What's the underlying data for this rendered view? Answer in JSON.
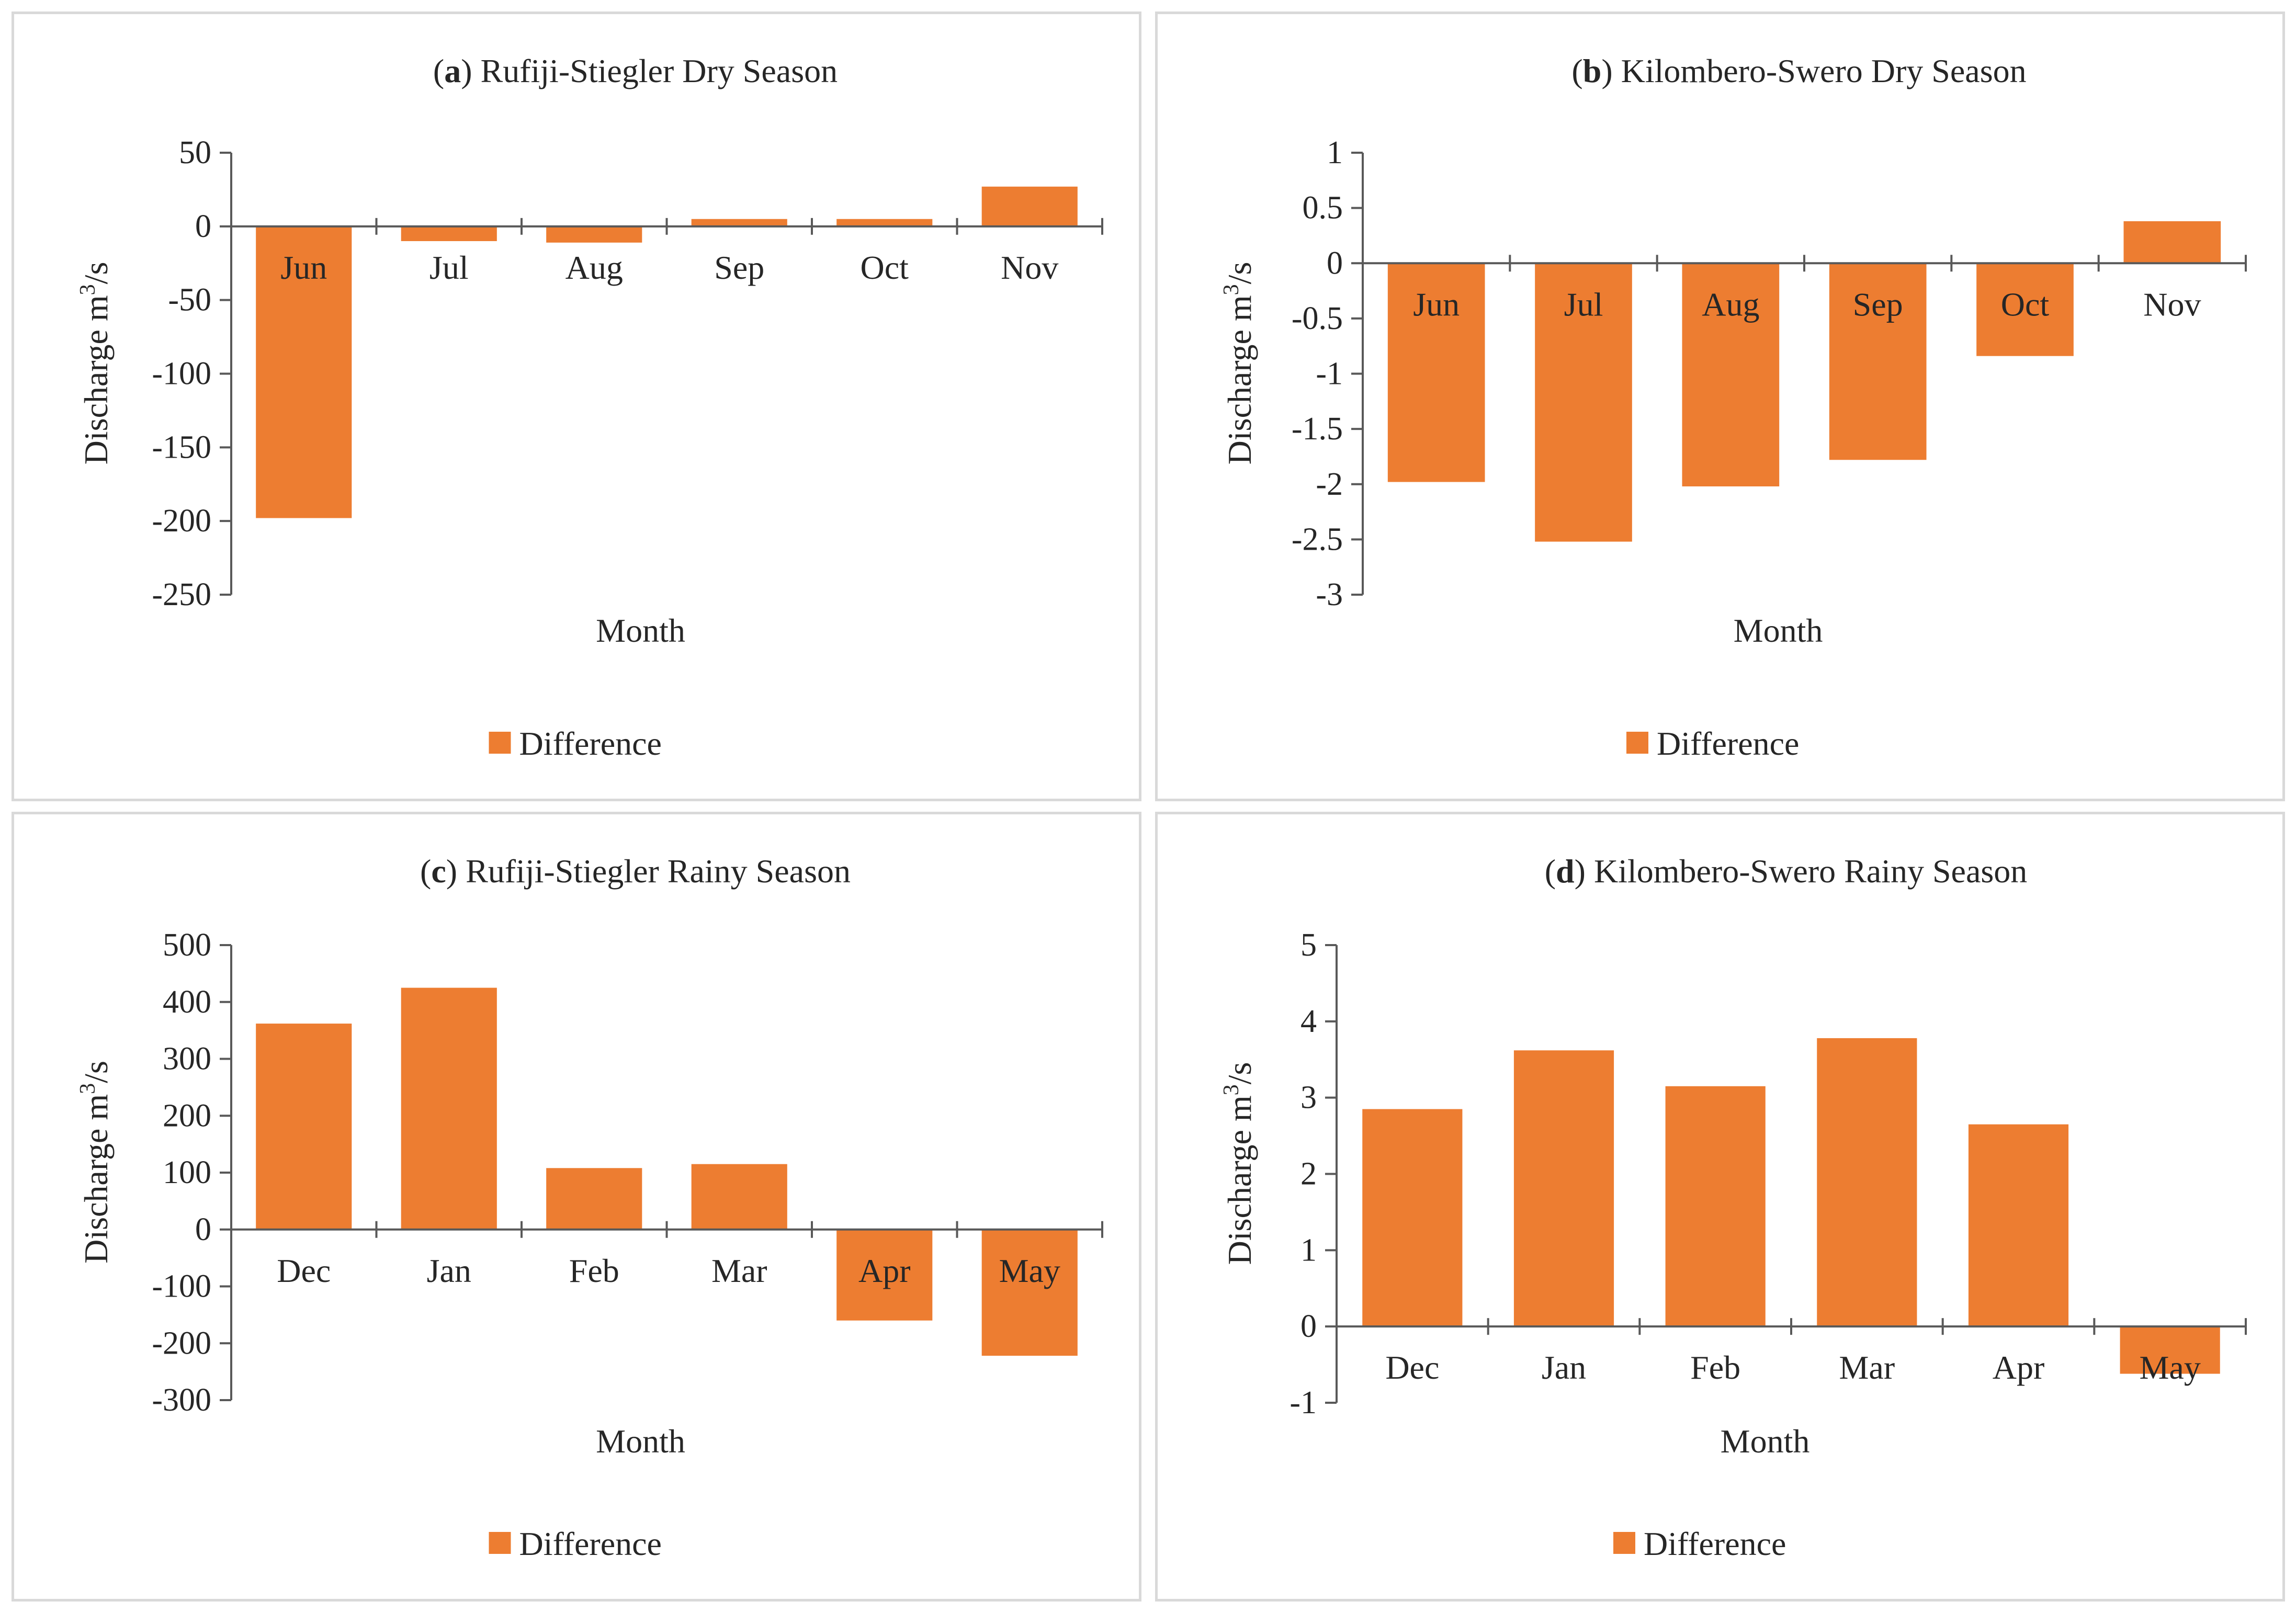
{
  "chart_data": [
    {
      "type": "bar",
      "panel_letter": "a",
      "title": "Rufiji-Stiegler Dry Season",
      "categories": [
        "Jun",
        "Jul",
        "Aug",
        "Sep",
        "Oct",
        "Nov"
      ],
      "series": [
        {
          "name": "Difference",
          "values": [
            -198,
            -10,
            -11,
            5,
            5,
            27
          ]
        }
      ],
      "ylabel": "Discharge m3/s",
      "ylabel_parts": [
        "Discharge m",
        "3",
        "/s"
      ],
      "xlabel": "Month",
      "ylim": [
        -250,
        50
      ],
      "yticks": [
        50,
        0,
        -50,
        -100,
        -150,
        -200,
        -250
      ],
      "ytick_labels": [
        "50",
        "0",
        "-50",
        "-100",
        "-150",
        "-200",
        "-250"
      ],
      "legend": [
        "Difference"
      ],
      "legend_position": "bottom",
      "bar_color": "#ED7D31"
    },
    {
      "type": "bar",
      "panel_letter": "b",
      "title": "Kilombero-Swero Dry Season",
      "categories": [
        "Jun",
        "Jul",
        "Aug",
        "Sep",
        "Oct",
        "Nov"
      ],
      "series": [
        {
          "name": "Difference",
          "values": [
            -1.98,
            -2.52,
            -2.02,
            -1.78,
            -0.84,
            0.38
          ]
        }
      ],
      "ylabel": "Discharge m3/s",
      "ylabel_parts": [
        "Discharge m",
        "3",
        "/s"
      ],
      "xlabel": "Month",
      "ylim": [
        -3,
        1
      ],
      "yticks": [
        1,
        0.5,
        0,
        -0.5,
        -1,
        -1.5,
        -2,
        -2.5,
        -3
      ],
      "ytick_labels": [
        "1",
        "0.5",
        "0",
        "-0.5",
        "-1",
        "-1.5",
        "-2",
        "-2.5",
        "-3"
      ],
      "legend": [
        "Difference"
      ],
      "legend_position": "bottom",
      "bar_color": "#ED7D31"
    },
    {
      "type": "bar",
      "panel_letter": "c",
      "title": "Rufiji-Stiegler Rainy Season",
      "categories": [
        "Dec",
        "Jan",
        "Feb",
        "Mar",
        "Apr",
        "May"
      ],
      "series": [
        {
          "name": "Difference",
          "values": [
            362,
            425,
            108,
            115,
            -160,
            -222
          ]
        }
      ],
      "ylabel": "Discharge m3/s",
      "ylabel_parts": [
        "Discharge m",
        "3",
        "/s"
      ],
      "xlabel": "Month",
      "ylim": [
        -300,
        500
      ],
      "yticks": [
        500,
        400,
        300,
        200,
        100,
        0,
        -100,
        -200,
        -300
      ],
      "ytick_labels": [
        "500",
        "400",
        "300",
        "200",
        "100",
        "0",
        "-100",
        "-200",
        "-300"
      ],
      "legend": [
        "Difference"
      ],
      "legend_position": "bottom",
      "bar_color": "#ED7D31"
    },
    {
      "type": "bar",
      "panel_letter": "d",
      "title": "Kilombero-Swero Rainy Season",
      "categories": [
        "Dec",
        "Jan",
        "Feb",
        "Mar",
        "Apr",
        "May"
      ],
      "series": [
        {
          "name": "Difference",
          "values": [
            2.85,
            3.62,
            3.15,
            3.78,
            2.65,
            -0.62
          ]
        }
      ],
      "ylabel": "Discharge m3/s",
      "ylabel_parts": [
        "Discharge m",
        "3",
        "/s"
      ],
      "xlabel": "Month",
      "ylim": [
        -1,
        5
      ],
      "yticks": [
        5,
        4,
        3,
        2,
        1,
        0,
        -1
      ],
      "ytick_labels": [
        "5",
        "4",
        "3",
        "2",
        "1",
        "0",
        "-1"
      ],
      "legend": [
        "Difference"
      ],
      "legend_position": "bottom",
      "bar_color": "#ED7D31"
    }
  ]
}
